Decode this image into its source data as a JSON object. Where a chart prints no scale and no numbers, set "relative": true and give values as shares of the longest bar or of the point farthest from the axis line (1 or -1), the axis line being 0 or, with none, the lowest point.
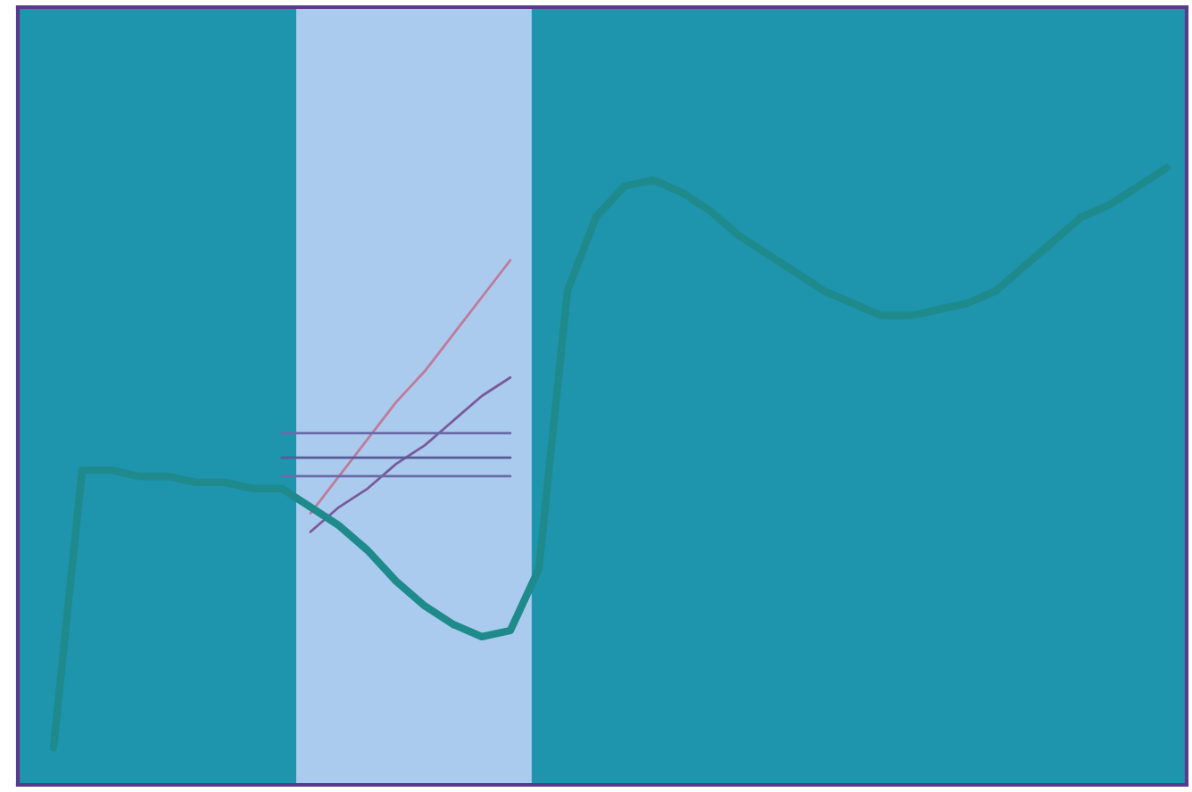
{
  "chart_data": {
    "type": "line",
    "relative": true,
    "grid": false,
    "marker": "none",
    "line_style": "solid",
    "categories": [
      null,
      null,
      null,
      null,
      null,
      null,
      null,
      null,
      null,
      null,
      null,
      null,
      null,
      null,
      null,
      null,
      null,
      null,
      null,
      null,
      null,
      null,
      null,
      null,
      null,
      null,
      null,
      null,
      null,
      null,
      null,
      null,
      null,
      null,
      null,
      null,
      null,
      null,
      null,
      null
    ],
    "series": [
      {
        "color": "#1f8a8c",
        "values": [
          0.06,
          0.51,
          0.51,
          0.5,
          0.5,
          0.49,
          0.49,
          0.48,
          0.48,
          0.45,
          0.42,
          0.38,
          0.33,
          0.29,
          0.26,
          0.24,
          0.25,
          0.35,
          0.8,
          0.92,
          0.97,
          0.98,
          0.96,
          0.93,
          0.89,
          0.86,
          0.83,
          0.8,
          0.78,
          0.76,
          0.76,
          0.77,
          0.78,
          0.8,
          0.84,
          0.88,
          0.92,
          0.94,
          0.97,
          1
        ]
      },
      {
        "color": "#c07a9a",
        "values": [
          null,
          null,
          null,
          null,
          null,
          null,
          null,
          null,
          null,
          0.44,
          0.5,
          0.56,
          0.62,
          0.67,
          0.73,
          0.79,
          0.85,
          null,
          null,
          null,
          null,
          null,
          null,
          null,
          null,
          null,
          null,
          null,
          null,
          null,
          null,
          null,
          null,
          null,
          null,
          null,
          null,
          null,
          null,
          null
        ]
      },
      {
        "color": "#7a5a9a",
        "values": [
          null,
          null,
          null,
          null,
          null,
          null,
          null,
          null,
          null,
          0.41,
          0.45,
          0.48,
          0.52,
          0.55,
          0.59,
          0.63,
          0.66,
          null,
          null,
          null,
          null,
          null,
          null,
          null,
          null,
          null,
          null,
          null,
          null,
          null,
          null,
          null,
          null,
          null,
          null,
          null,
          null,
          null,
          null,
          null
        ]
      },
      {
        "color": "#6a6aa8",
        "values": [
          null,
          null,
          null,
          null,
          null,
          null,
          null,
          null,
          0.57,
          0.57,
          0.57,
          0.57,
          0.57,
          0.57,
          0.57,
          0.57,
          0.57,
          null,
          null,
          null,
          null,
          null,
          null,
          null,
          null,
          null,
          null,
          null,
          null,
          null,
          null,
          null,
          null,
          null,
          null,
          null,
          null,
          null,
          null,
          null
        ]
      },
      {
        "color": "#5a5a98",
        "values": [
          null,
          null,
          null,
          null,
          null,
          null,
          null,
          null,
          0.53,
          0.53,
          0.53,
          0.53,
          0.53,
          0.53,
          0.53,
          0.53,
          0.53,
          null,
          null,
          null,
          null,
          null,
          null,
          null,
          null,
          null,
          null,
          null,
          null,
          null,
          null,
          null,
          null,
          null,
          null,
          null,
          null,
          null,
          null,
          null
        ]
      },
      {
        "color": "#6a6aa8",
        "values": [
          null,
          null,
          null,
          null,
          null,
          null,
          null,
          null,
          0.5,
          0.5,
          0.5,
          0.5,
          0.5,
          0.5,
          0.5,
          0.5,
          0.5,
          null,
          null,
          null,
          null,
          null,
          null,
          null,
          null,
          null,
          null,
          null,
          null,
          null,
          null,
          null,
          null,
          null,
          null,
          null,
          null,
          null,
          null,
          null
        ]
      }
    ]
  }
}
